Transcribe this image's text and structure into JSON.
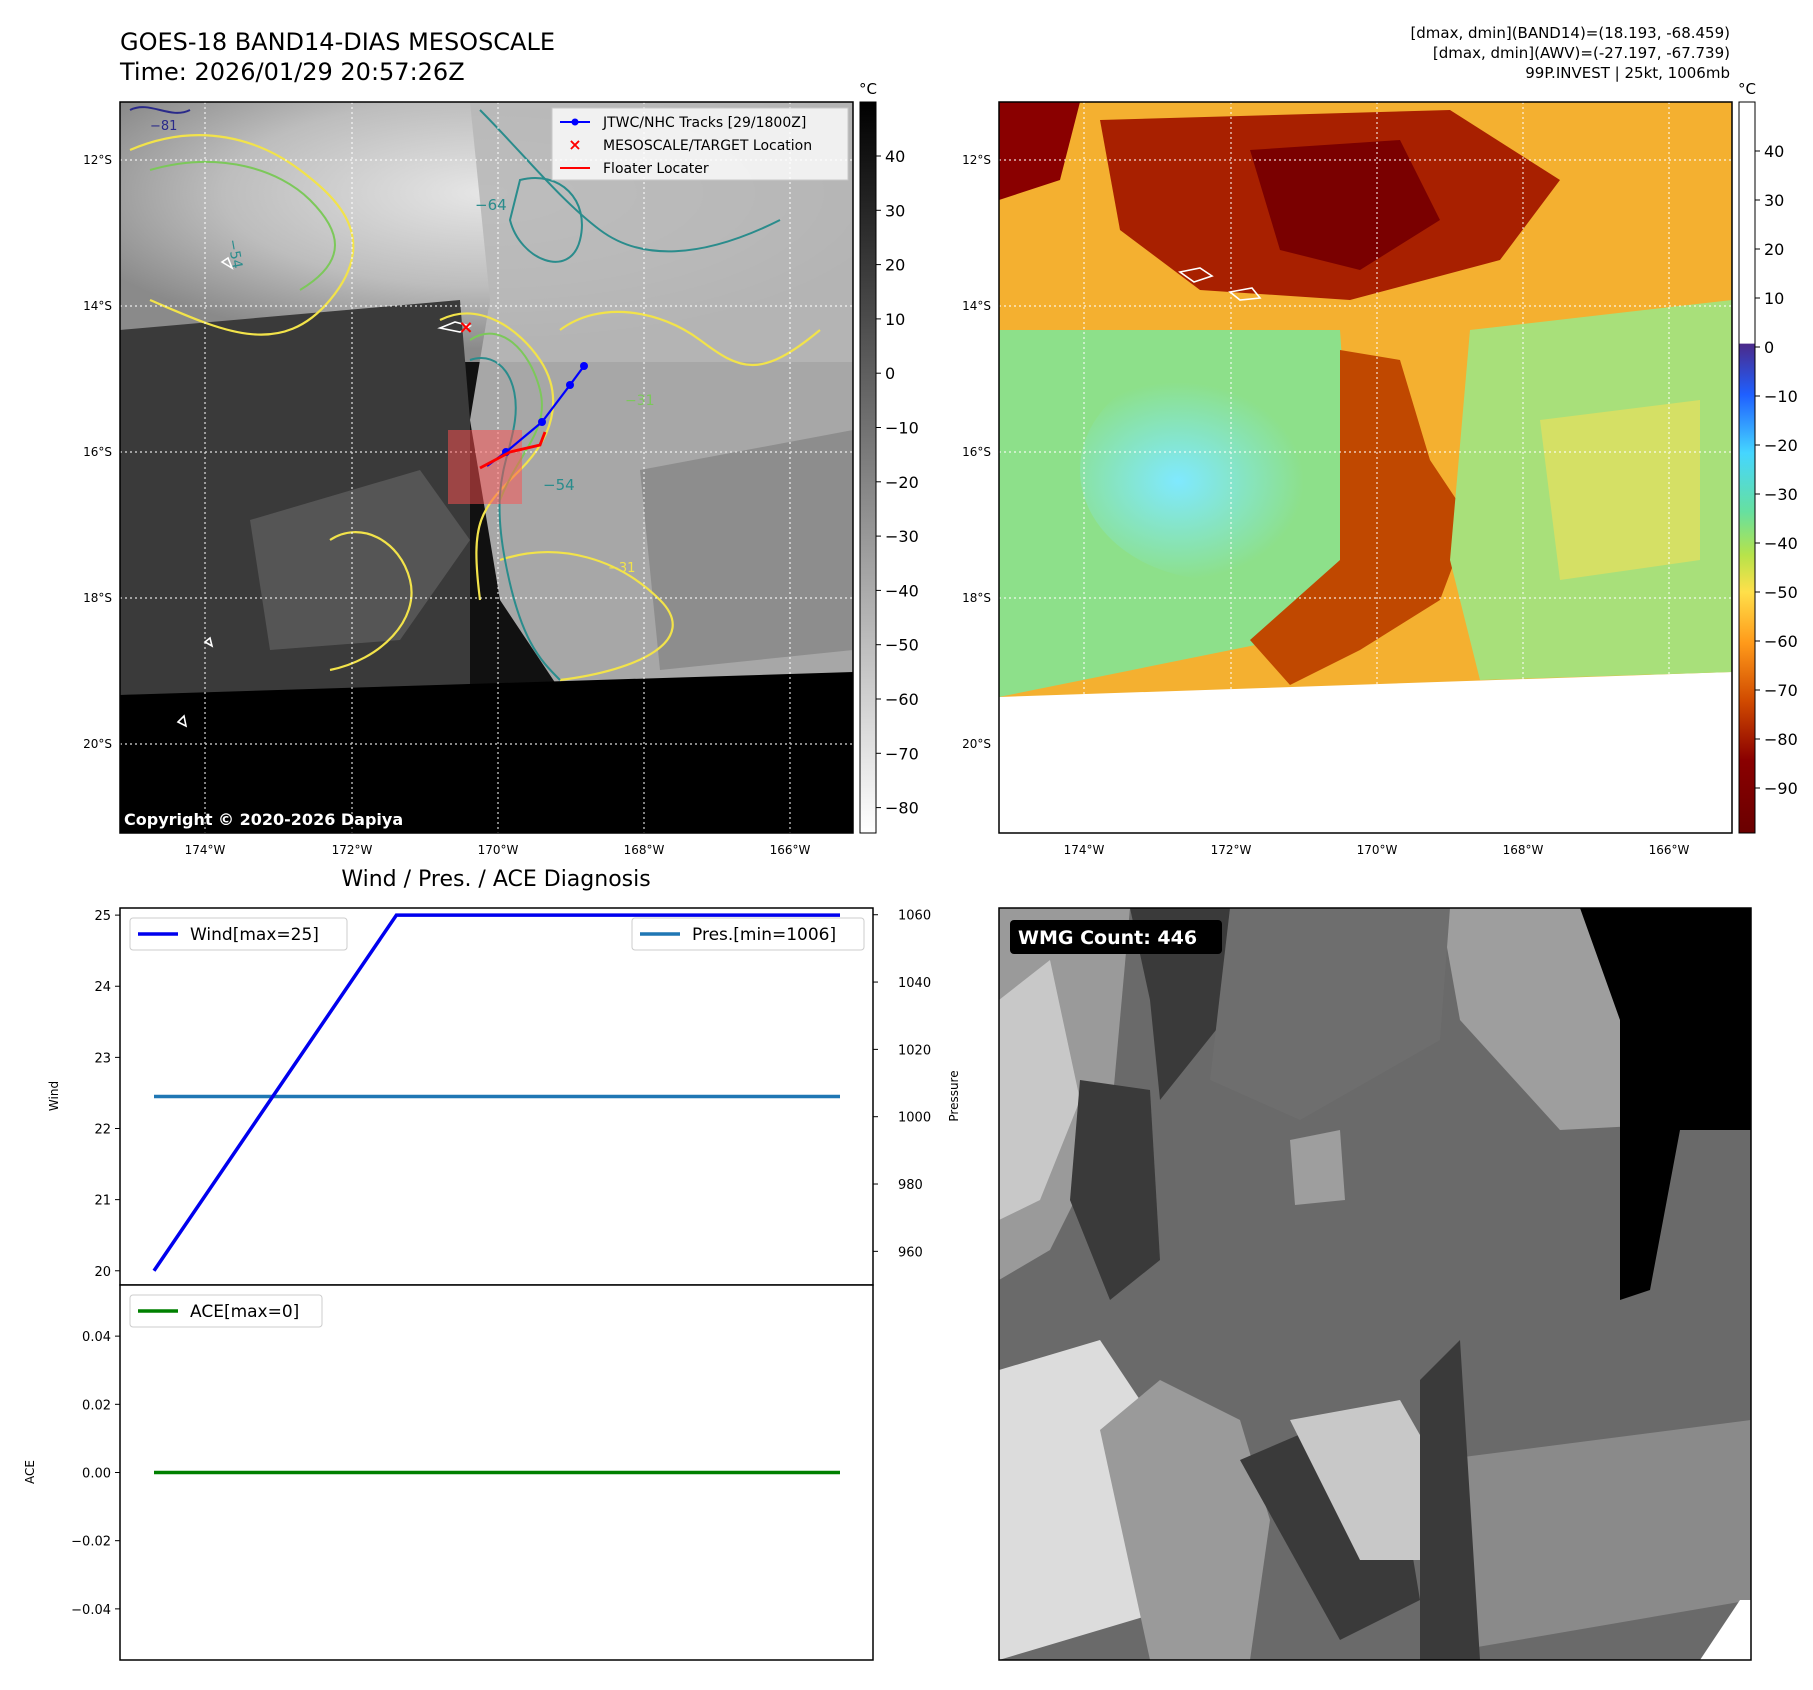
{
  "header": {
    "title": "GOES-18 BAND14-DIAS MESOSCALE",
    "time": "Time: 2026/01/29 20:57:26Z",
    "stats_line1": "[dmax, dmin](BAND14)=(18.193, -68.459)",
    "stats_line2": "[dmax, dmin](AWV)=(-27.197, -67.739)",
    "stats_line3": "99P.INVEST | 25kt, 1006mb"
  },
  "copyright": "Copyright © 2020-2026 Dapiya",
  "wmg_count": "WMG Count: 446",
  "map_axes": {
    "lon_ticks": [
      "174°W",
      "172°W",
      "170°W",
      "168°W",
      "166°W"
    ],
    "lat_ticks": [
      "12°S",
      "14°S",
      "16°S",
      "18°S",
      "20°S"
    ]
  },
  "colorbar_gray": {
    "unit": "°C",
    "ticks": [
      "40",
      "30",
      "20",
      "10",
      "0",
      "−10",
      "−20",
      "−30",
      "−40",
      "−50",
      "−60",
      "−70",
      "−80"
    ]
  },
  "colorbar_awv": {
    "unit": "°C",
    "ticks": [
      "40",
      "30",
      "20",
      "10",
      "0",
      "−10",
      "−20",
      "−30",
      "−40",
      "−50",
      "−60",
      "−70",
      "−80",
      "−90"
    ]
  },
  "contour_labels": [
    "−64",
    "−54",
    "−31",
    "−54",
    "−31",
    "−81"
  ],
  "legend": {
    "tracks": "JTWC/NHC Tracks [29/1800Z]",
    "target": "MESOSCALE/TARGET Location",
    "floater": "Floater Locater"
  },
  "colors": {
    "track": "#0000ff",
    "target": "#ff0000",
    "floater": "#ff0000",
    "wind": "#0000ee",
    "pressure": "#1f77b4",
    "ace": "#008000",
    "contour_yellow": "#f2e34a",
    "contour_green": "#7cc85a",
    "contour_teal": "#2a8c8c"
  },
  "chart_data": [
    {
      "type": "line",
      "title": "Wind / Pres. / ACE Diagnosis",
      "x": [
        0,
        1,
        2,
        3
      ],
      "series": [
        {
          "name": "Wind[max=25]",
          "axis": "left",
          "values": [
            20,
            25,
            25,
            25
          ]
        },
        {
          "name": "Pres.[min=1006]",
          "axis": "right",
          "values": [
            1006,
            1006,
            1006,
            1006
          ]
        }
      ],
      "ylabel": "Wind",
      "y2label": "Pressure",
      "ylim": [
        19.8,
        25.1
      ],
      "y2lim": [
        950,
        1062
      ],
      "yticks": [
        "20",
        "21",
        "22",
        "23",
        "24",
        "25"
      ],
      "y2ticks": [
        "960",
        "980",
        "1000",
        "1020",
        "1040",
        "1060"
      ]
    },
    {
      "type": "line",
      "x": [
        0,
        3
      ],
      "series": [
        {
          "name": "ACE[max=0]",
          "values": [
            0,
            0
          ]
        }
      ],
      "ylabel": "ACE",
      "ylim": [
        -0.055,
        0.055
      ],
      "yticks": [
        "0.04",
        "0.02",
        "0.00",
        "−0.02",
        "−0.04"
      ]
    }
  ]
}
